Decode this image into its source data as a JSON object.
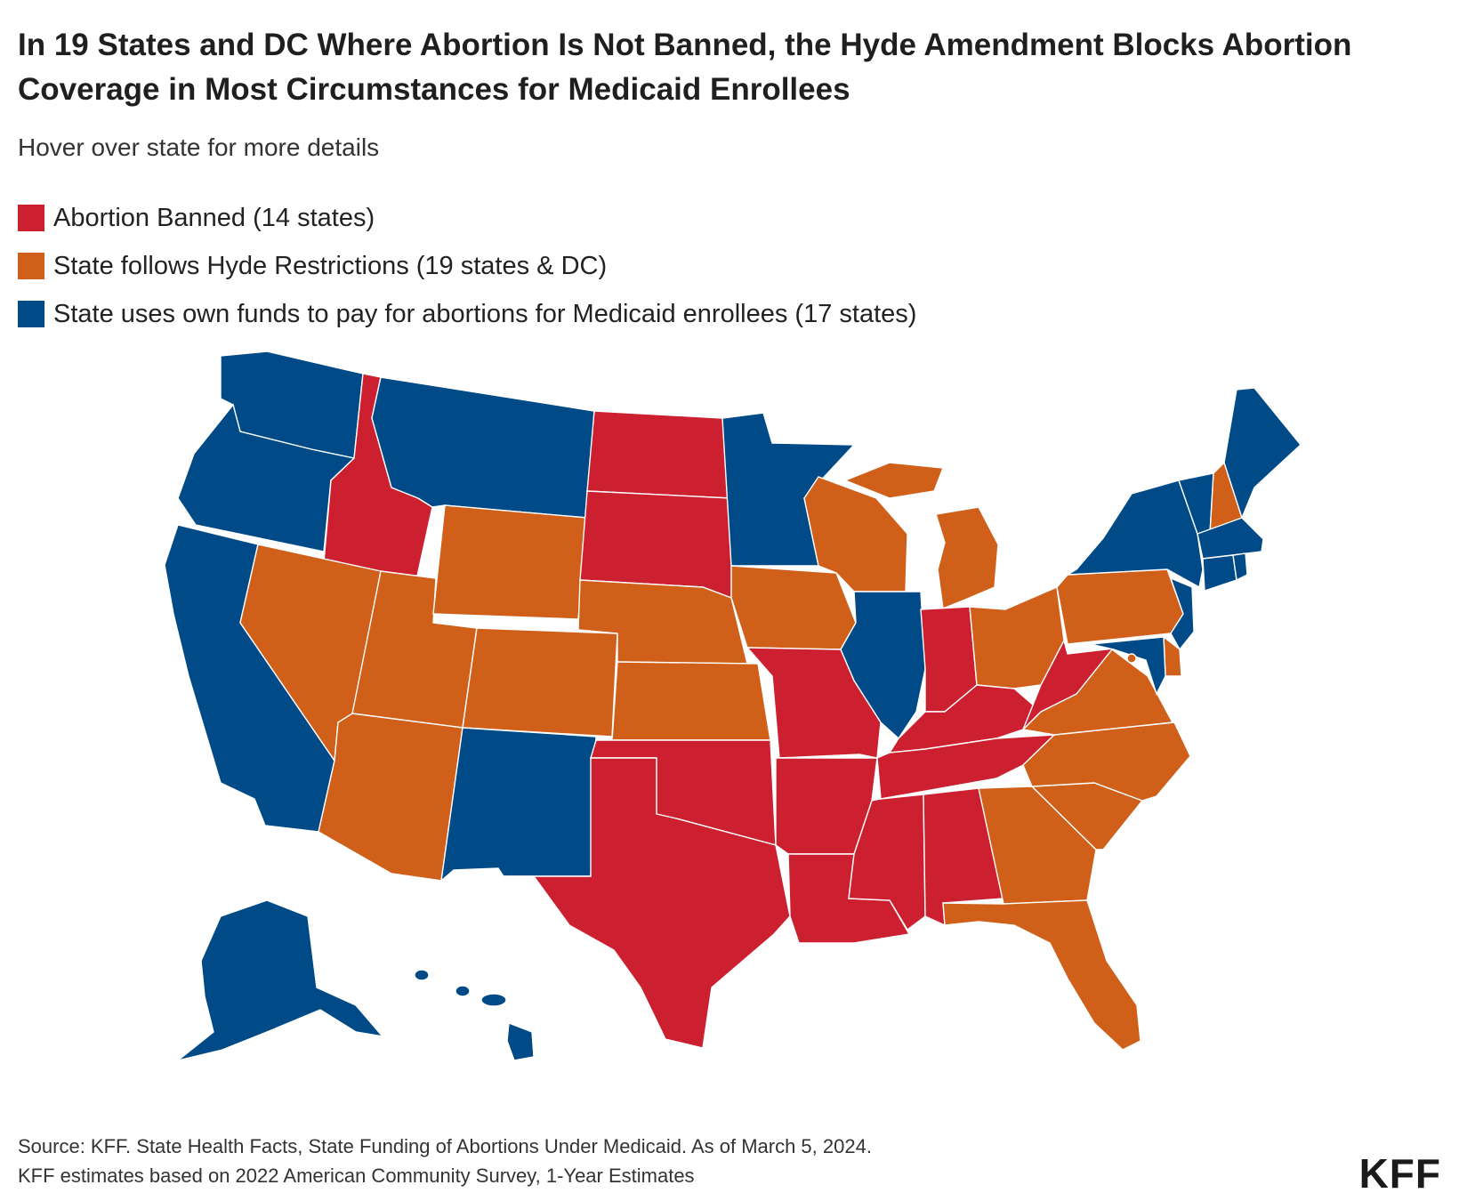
{
  "title": "In 19 States and DC Where Abortion Is Not Banned, the Hyde Amendment Blocks Abortion Coverage in Most Circumstances for Medicaid Enrollees",
  "subtitle": "Hover over state for more details",
  "colors": {
    "banned": "#cc1f2f",
    "hyde": "#cf5f19",
    "own_funds": "#004a87"
  },
  "legend": [
    {
      "key": "banned",
      "label": "Abortion Banned (14 states)",
      "color": "#cc1f2f"
    },
    {
      "key": "hyde",
      "label": "State follows Hyde Restrictions (19 states & DC)",
      "color": "#cf5f19"
    },
    {
      "key": "own_funds",
      "label": "State uses own funds to pay for abortions for Medicaid enrollees (17 states)",
      "color": "#004a87"
    }
  ],
  "states": {
    "WA": "own_funds",
    "OR": "own_funds",
    "CA": "own_funds",
    "ID": "banned",
    "MT": "own_funds",
    "WY": "hyde",
    "NV": "hyde",
    "UT": "hyde",
    "AZ": "hyde",
    "CO": "hyde",
    "NM": "own_funds",
    "ND": "banned",
    "SD": "banned",
    "NE": "hyde",
    "KS": "hyde",
    "OK": "banned",
    "TX": "banned",
    "MN": "own_funds",
    "IA": "hyde",
    "MO": "banned",
    "AR": "banned",
    "LA": "banned",
    "WI": "hyde",
    "IL": "own_funds",
    "MI": "hyde",
    "IN": "banned",
    "OH": "hyde",
    "KY": "banned",
    "TN": "banned",
    "MS": "banned",
    "AL": "banned",
    "GA": "hyde",
    "FL": "hyde",
    "SC": "hyde",
    "NC": "hyde",
    "VA": "hyde",
    "WV": "banned",
    "PA": "hyde",
    "NY": "own_funds",
    "VT": "own_funds",
    "NH": "hyde",
    "ME": "own_funds",
    "MA": "own_funds",
    "CT": "own_funds",
    "RI": "own_funds",
    "NJ": "own_funds",
    "DE": "hyde",
    "MD": "own_funds",
    "DC": "hyde",
    "AK": "own_funds",
    "HI": "own_funds"
  },
  "source": {
    "line1": "Source: KFF. State Health Facts, State Funding of Abortions Under Medicaid. As of March 5, 2024.",
    "line2": "KFF estimates based on 2022 American Community Survey, 1-Year Estimates"
  },
  "logo": "KFF"
}
